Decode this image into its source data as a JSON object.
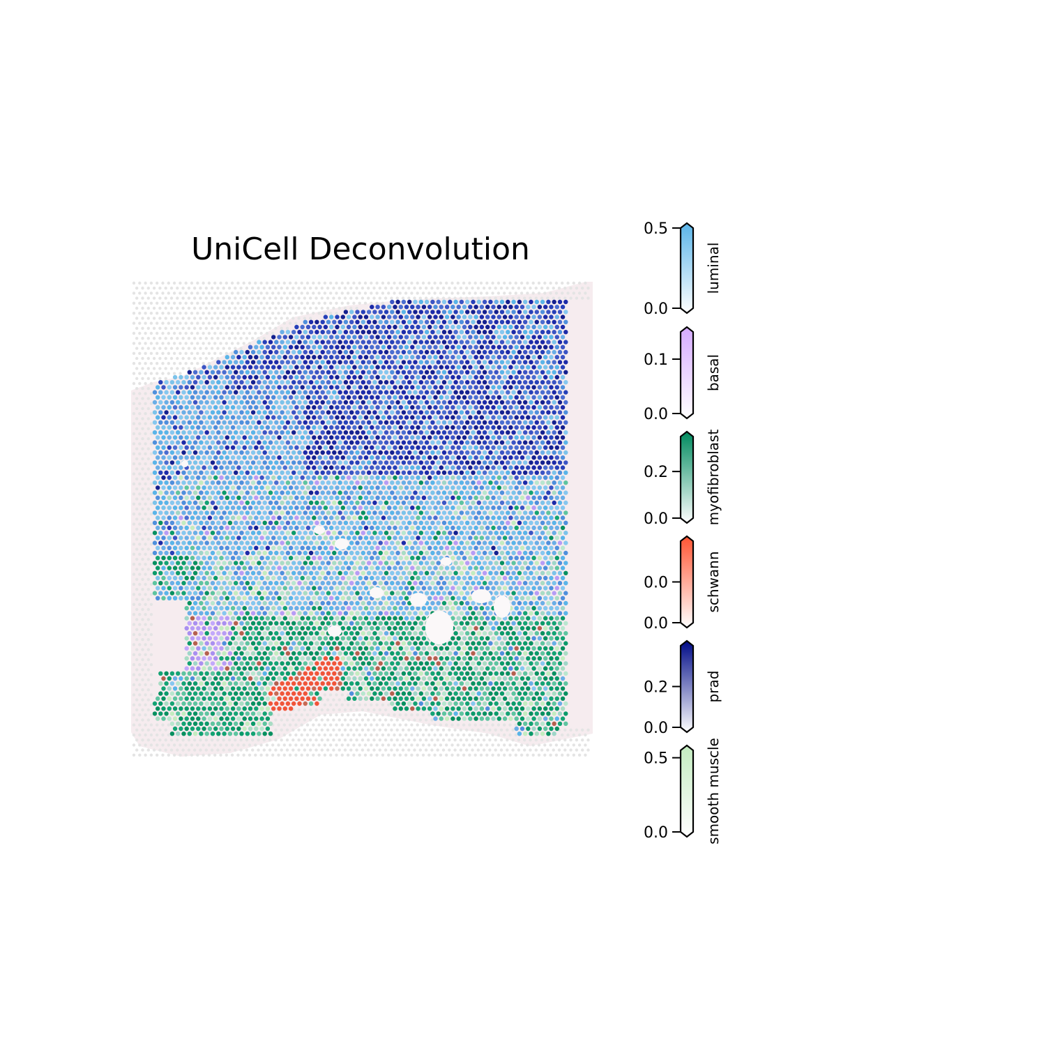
{
  "chart_data": {
    "type": "scatter",
    "title": "UniCell Deconvolution",
    "description_kind": "spatial spot map colored by dominant cell-type proportion",
    "colorbars": [
      {
        "name": "luminal",
        "min": 0.0,
        "max": 0.5,
        "ticks": [
          "0.5",
          "0.0"
        ],
        "tick_values": [
          0.5,
          0.0
        ],
        "color": "#5ab4e8"
      },
      {
        "name": "basal",
        "min": 0.0,
        "max": 0.15,
        "ticks": [
          "0.1",
          "0.0"
        ],
        "tick_values": [
          0.1,
          0.0
        ],
        "color": "#d5aaff"
      },
      {
        "name": "myofibroblast",
        "min": 0.0,
        "max": 0.35,
        "ticks": [
          "0.2",
          "0.0"
        ],
        "tick_values": [
          0.2,
          0.0
        ],
        "color": "#008a5e"
      },
      {
        "name": "schwann",
        "min": 0.0,
        "max": 0.02,
        "ticks": [
          "0.0",
          "0.0"
        ],
        "tick_values": [
          0.01,
          0.0
        ],
        "color": "#ff5533"
      },
      {
        "name": "prad",
        "min": 0.0,
        "max": 0.4,
        "ticks": [
          "0.2",
          "0.0"
        ],
        "tick_values": [
          0.2,
          0.0
        ],
        "color": "#000b87"
      },
      {
        "name": "smooth muscle",
        "min": 0.0,
        "max": 0.55,
        "ticks": [
          "0.5",
          "0.0"
        ],
        "tick_values": [
          0.5,
          0.0
        ],
        "color": "#c3ecc0"
      }
    ],
    "colors": {
      "tissue": "#efdce2",
      "background_spot": "#e4e4e4",
      "luminal_light": "#7cc3ea",
      "luminal_mid": "#5ab4e8",
      "prad_dark": "#1c2aa8",
      "prad_mid": "#3b54c4",
      "myofibroblast": "#0b9a6a",
      "myofibroblast_light": "#5ec4a0",
      "smooth_muscle": "#c3ecc0",
      "basal": "#b79cf5",
      "schwann": "#f0553a"
    }
  }
}
